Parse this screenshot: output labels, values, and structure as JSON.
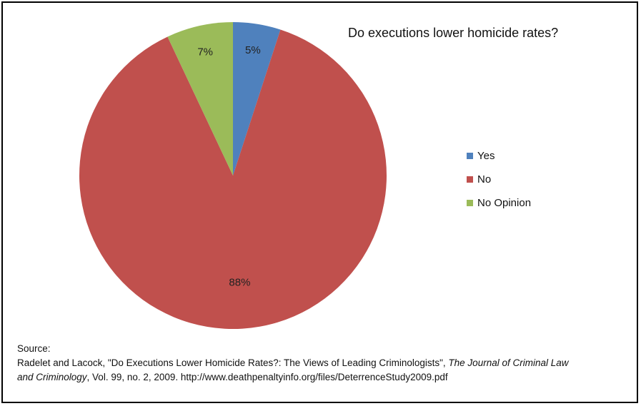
{
  "chart_data": {
    "type": "pie",
    "title": "Do executions lower homicide rates?",
    "categories": [
      "Yes",
      "No",
      "No Opinion"
    ],
    "values": [
      5,
      88,
      7
    ],
    "value_labels": [
      "5%",
      "88%",
      "7%"
    ],
    "colors": [
      "#4f81bd",
      "#c0504d",
      "#9bbb59"
    ],
    "legend_position": "right"
  },
  "source": {
    "heading": "Source:",
    "authors": "Radelet and Lacock, \"Do Executions Lower Homicide Rates?: The Views of Leading Criminologists\",",
    "journal_part1": "The Journal of Criminal Law",
    "journal_part2": "and Criminology",
    "details": ", Vol. 99, no. 2, 2009.  http://www.deathpenaltyinfo.org/files/DeterrenceStudy2009.pdf"
  }
}
